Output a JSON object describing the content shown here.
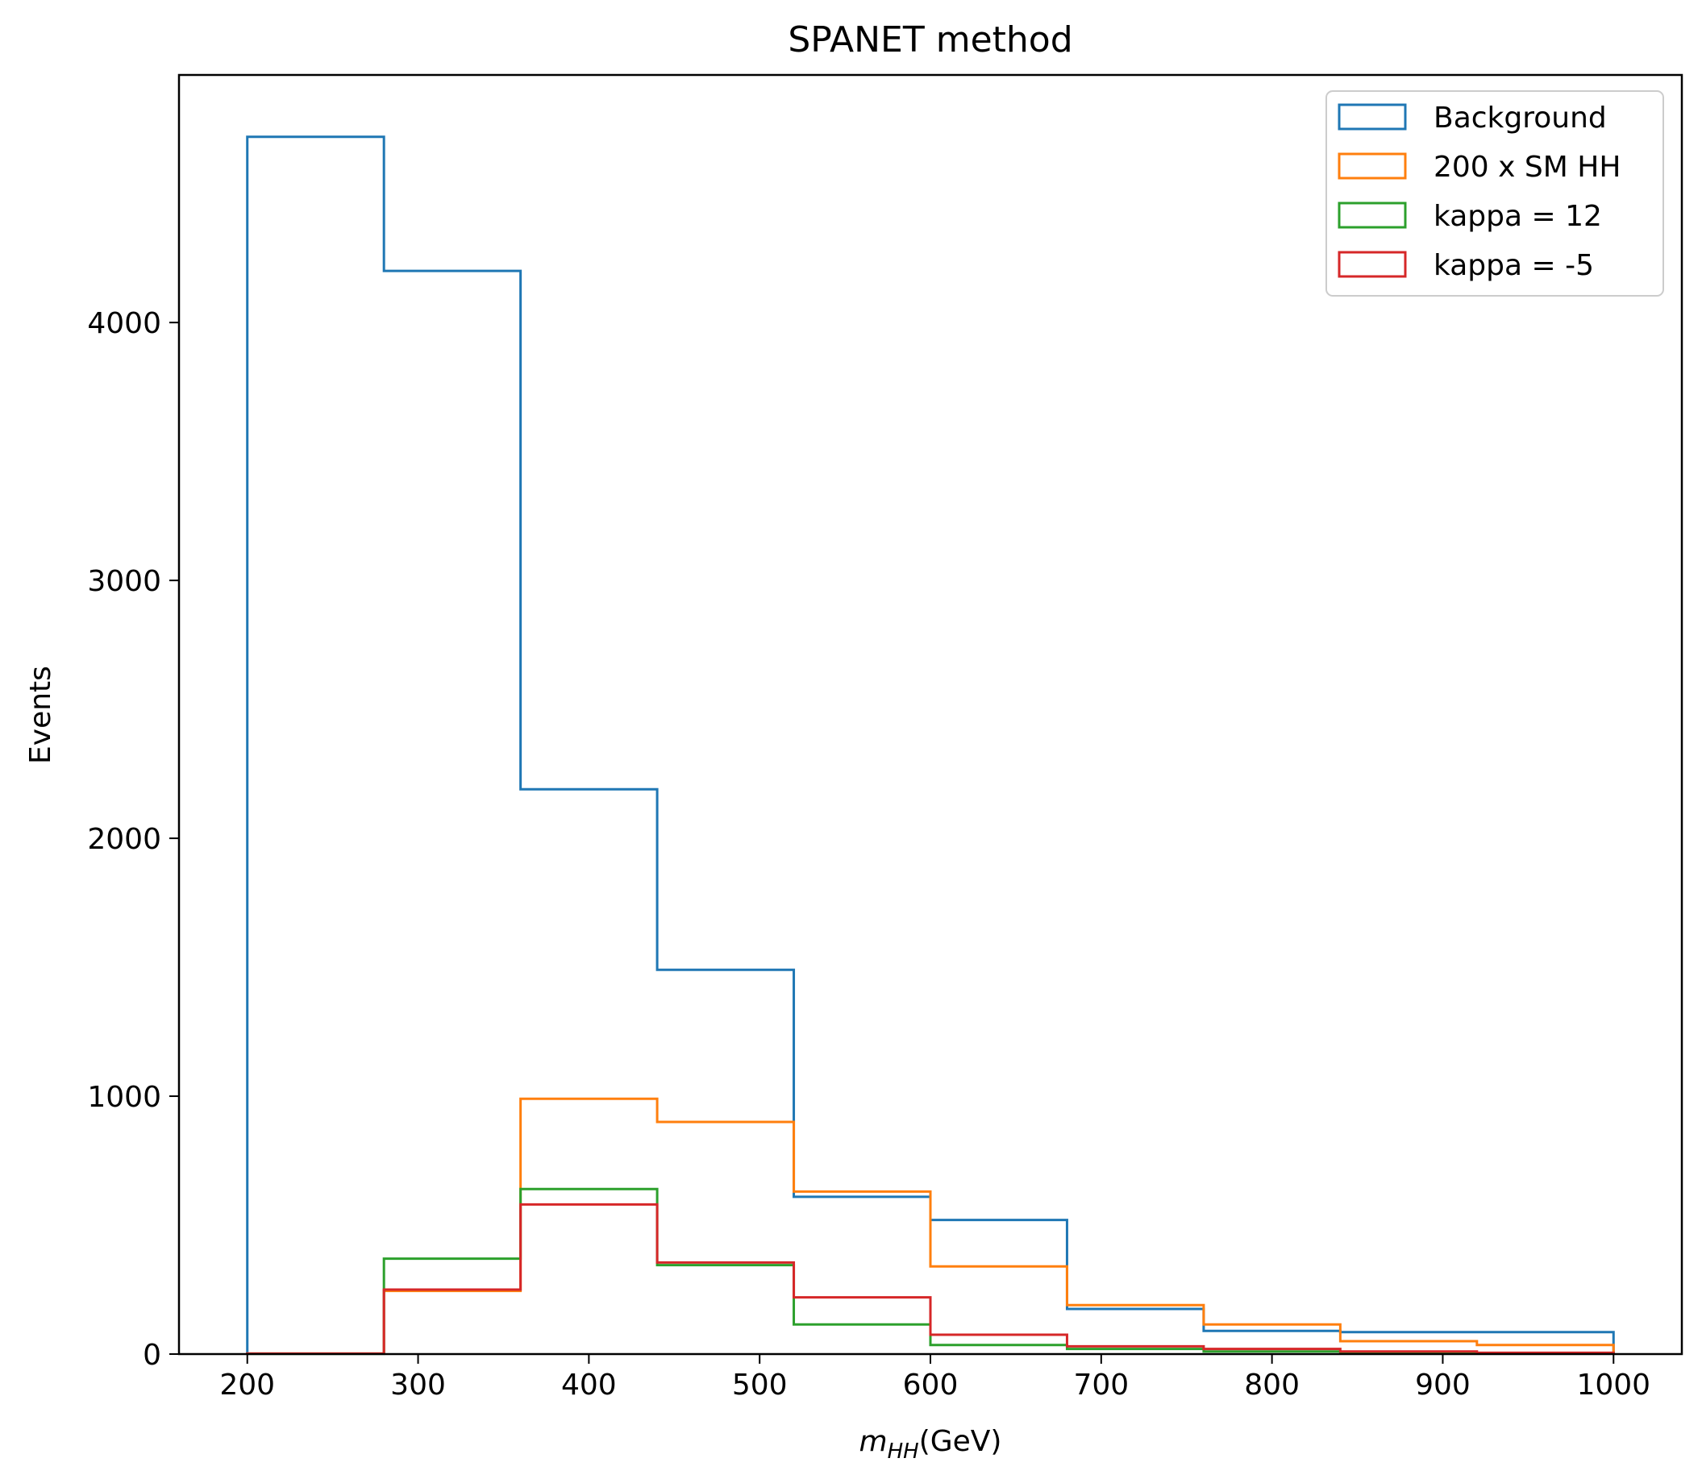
{
  "chart_data": {
    "type": "histogram",
    "title": "SPANET method",
    "xlabel_math": "m",
    "xlabel_sub": "HH",
    "xlabel_unit": "(GeV)",
    "ylabel": "Events",
    "xlim": [
      160,
      1040
    ],
    "ylim": [
      0,
      4960
    ],
    "bin_edges": [
      200,
      280,
      360,
      440,
      520,
      600,
      680,
      760,
      840,
      920,
      1000
    ],
    "x_ticks": [
      200,
      300,
      400,
      500,
      600,
      700,
      800,
      900,
      1000
    ],
    "y_ticks": [
      0,
      1000,
      2000,
      3000,
      4000
    ],
    "legend_position": "top-right",
    "series": [
      {
        "name": "Background",
        "color": "#1f77b4",
        "values": [
          4720,
          4200,
          2190,
          1490,
          610,
          520,
          175,
          90,
          85,
          85
        ]
      },
      {
        "name": "200 x SM HH",
        "color": "#ff7f0e",
        "values": [
          2,
          245,
          990,
          900,
          630,
          340,
          190,
          115,
          50,
          35
        ]
      },
      {
        "name": "kappa = 12",
        "color": "#2ca02c",
        "values": [
          1,
          370,
          640,
          345,
          115,
          35,
          20,
          10,
          5,
          3
        ]
      },
      {
        "name": "kappa = -5",
        "color": "#d62728",
        "values": [
          2,
          250,
          580,
          355,
          220,
          75,
          30,
          20,
          10,
          5
        ]
      }
    ]
  }
}
